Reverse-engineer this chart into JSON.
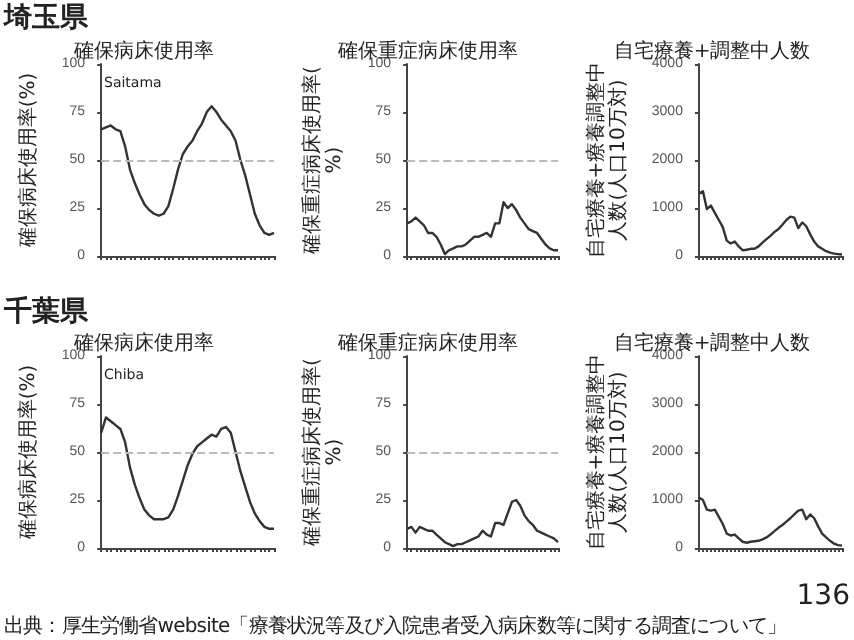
{
  "chart_data": [
    {
      "type": "line",
      "title": "確保病床使用率",
      "ylabel": "確保病床使用率(%)",
      "annotations": [
        "埼玉県",
        "Saitama"
      ],
      "categories": [
        null,
        null,
        null,
        null,
        null,
        null,
        null,
        null,
        null,
        null,
        null,
        null,
        null,
        null,
        null,
        null,
        null,
        null,
        null,
        null,
        null,
        null,
        null,
        null,
        null,
        null,
        null,
        null,
        null,
        null,
        null,
        null,
        null,
        null,
        null,
        null,
        null
      ],
      "series": [
        {
          "color": "#333333",
          "values": [
            66,
            67,
            68,
            66,
            65,
            57,
            45,
            38,
            32,
            27,
            24,
            22,
            21,
            22,
            26,
            35,
            45,
            53,
            57,
            60,
            65,
            69,
            75,
            78,
            75,
            71,
            68,
            65,
            60,
            50,
            42,
            32,
            22,
            16,
            12,
            11,
            12
          ]
        }
      ],
      "ylim": [
        0,
        100
      ],
      "yticks": [
        0,
        25,
        50,
        75,
        100
      ],
      "ref_lines": [
        {
          "axis": "y",
          "value": 50,
          "color": "#bbbbbb",
          "line_style": "dashed"
        }
      ]
    },
    {
      "type": "line",
      "title": "確保重症病床使用率",
      "ylabel": "確保重症病床使用率(%)",
      "categories": [
        null,
        null,
        null,
        null,
        null,
        null,
        null,
        null,
        null,
        null,
        null,
        null,
        null,
        null,
        null,
        null,
        null,
        null,
        null,
        null,
        null,
        null,
        null,
        null,
        null,
        null,
        null,
        null,
        null,
        null,
        null,
        null,
        null,
        null,
        null,
        null,
        null
      ],
      "series": [
        {
          "color": "#333333",
          "values": [
            17,
            18,
            20,
            18,
            16,
            12,
            12,
            10,
            6,
            1,
            3,
            4,
            5,
            5,
            6,
            8,
            10,
            10,
            11,
            12,
            10,
            17,
            17,
            28,
            25,
            27,
            24,
            20,
            17,
            14,
            13,
            12,
            9,
            6,
            4,
            3,
            3
          ]
        }
      ],
      "ylim": [
        0,
        100
      ],
      "yticks": [
        0,
        25,
        50,
        75,
        100
      ],
      "ref_lines": [
        {
          "axis": "y",
          "value": 50,
          "color": "#bbbbbb",
          "line_style": "dashed"
        }
      ]
    },
    {
      "type": "line",
      "title": "自宅療養+調整中人数",
      "ylabel": "自宅療養+療養調整中人数(人口10万対)",
      "categories": [
        null,
        null,
        null,
        null,
        null,
        null,
        null,
        null,
        null,
        null,
        null,
        null,
        null,
        null,
        null,
        null,
        null,
        null,
        null,
        null,
        null,
        null,
        null,
        null,
        null,
        null,
        null,
        null,
        null,
        null,
        null,
        null,
        null,
        null,
        null,
        null,
        null
      ],
      "series": [
        {
          "color": "#333333",
          "values": [
            1300,
            1350,
            980,
            1050,
            900,
            750,
            600,
            320,
            260,
            300,
            200,
            120,
            130,
            150,
            150,
            200,
            280,
            350,
            420,
            500,
            560,
            650,
            750,
            820,
            800,
            580,
            700,
            620,
            450,
            300,
            200,
            150,
            100,
            70,
            50,
            40,
            30
          ]
        }
      ],
      "ylim": [
        0,
        4000
      ],
      "yticks": [
        0,
        1000,
        2000,
        3000,
        4000
      ]
    },
    {
      "type": "line",
      "title": "確保病床使用率",
      "ylabel": "確保病床使用率(%)",
      "annotations": [
        "千葉県",
        "Chiba"
      ],
      "categories": [
        null,
        null,
        null,
        null,
        null,
        null,
        null,
        null,
        null,
        null,
        null,
        null,
        null,
        null,
        null,
        null,
        null,
        null,
        null,
        null,
        null,
        null,
        null,
        null,
        null,
        null,
        null,
        null,
        null,
        null,
        null,
        null,
        null,
        null,
        null,
        null,
        null
      ],
      "series": [
        {
          "color": "#333333",
          "values": [
            60,
            68,
            66,
            64,
            62,
            55,
            42,
            33,
            26,
            20,
            17,
            15,
            15,
            15,
            16,
            20,
            27,
            35,
            43,
            49,
            53,
            55,
            57,
            59,
            58,
            62,
            63,
            60,
            50,
            40,
            32,
            24,
            18,
            14,
            11,
            10,
            10
          ]
        }
      ],
      "ylim": [
        0,
        100
      ],
      "yticks": [
        0,
        25,
        50,
        75,
        100
      ],
      "ref_lines": [
        {
          "axis": "y",
          "value": 50,
          "color": "#bbbbbb",
          "line_style": "dashed"
        }
      ]
    },
    {
      "type": "line",
      "title": "確保重症病床使用率",
      "ylabel": "確保重症病床使用率(%)",
      "categories": [
        null,
        null,
        null,
        null,
        null,
        null,
        null,
        null,
        null,
        null,
        null,
        null,
        null,
        null,
        null,
        null,
        null,
        null,
        null,
        null,
        null,
        null,
        null,
        null,
        null,
        null,
        null,
        null,
        null,
        null,
        null,
        null,
        null,
        null,
        null,
        null,
        null
      ],
      "series": [
        {
          "color": "#333333",
          "values": [
            10,
            11,
            8,
            11,
            10,
            9,
            9,
            7,
            5,
            3,
            2,
            1,
            2,
            2,
            3,
            4,
            5,
            6,
            9,
            7,
            6,
            13,
            13,
            12,
            18,
            24,
            25,
            22,
            17,
            14,
            12,
            9,
            8,
            7,
            6,
            5,
            3
          ]
        }
      ],
      "ylim": [
        0,
        100
      ],
      "yticks": [
        0,
        25,
        50,
        75,
        100
      ],
      "ref_lines": [
        {
          "axis": "y",
          "value": 50,
          "color": "#bbbbbb",
          "line_style": "dashed"
        }
      ]
    },
    {
      "type": "line",
      "title": "自宅療養+調整中人数",
      "ylabel": "自宅療養+療養調整中人数(人口10万対)",
      "annotations": [
        "出典：厚生労働省website「療養状況等及び入院患者受入病床数等に関する調査について」",
        "136"
      ],
      "categories": [
        null,
        null,
        null,
        null,
        null,
        null,
        null,
        null,
        null,
        null,
        null,
        null,
        null,
        null,
        null,
        null,
        null,
        null,
        null,
        null,
        null,
        null,
        null,
        null,
        null,
        null,
        null,
        null,
        null,
        null,
        null,
        null,
        null,
        null,
        null,
        null,
        null
      ],
      "series": [
        {
          "color": "#333333",
          "values": [
            1050,
            1000,
            800,
            780,
            800,
            650,
            500,
            300,
            260,
            280,
            200,
            130,
            110,
            130,
            140,
            150,
            180,
            220,
            280,
            350,
            420,
            480,
            550,
            620,
            700,
            780,
            800,
            600,
            700,
            620,
            450,
            300,
            220,
            150,
            90,
            60,
            50
          ]
        }
      ],
      "ylim": [
        0,
        4000
      ],
      "yticks": [
        0,
        1000,
        2000,
        3000,
        4000
      ]
    }
  ]
}
